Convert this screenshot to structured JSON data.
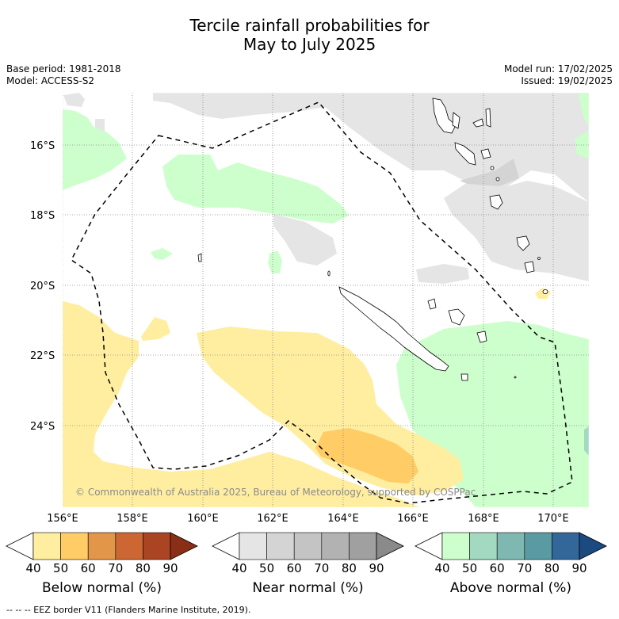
{
  "title_line1": "Tercile rainfall probabilities for",
  "title_line2": "May to July 2025",
  "base_period": "Base period: 1981-2018",
  "model": "Model: ACCESS-S2",
  "model_run": "Model run: 17/02/2025",
  "issued": "Issued: 19/02/2025",
  "credit": "© Commonwealth of Australia 2025, Bureau of Meteorology, supported by COSPPac",
  "eez_note": "--  --  -- EEZ border V11 (Flanders Marine Institute, 2019).",
  "lat_labels": [
    "16°S",
    "18°S",
    "20°S",
    "22°S",
    "24°S"
  ],
  "lon_labels": [
    "156°E",
    "158°E",
    "160°E",
    "162°E",
    "164°E",
    "166°E",
    "168°E",
    "170°E"
  ],
  "colorbars": [
    {
      "title": "Below normal (%)",
      "ticks": [
        "40",
        "50",
        "60",
        "70",
        "80",
        "90"
      ],
      "colors": [
        "#ffffff",
        "#ffeea0",
        "#ffcc66",
        "#e29649",
        "#cc6633",
        "#aa4422",
        "#8b2e16"
      ]
    },
    {
      "title": "Near normal (%)",
      "ticks": [
        "40",
        "50",
        "60",
        "70",
        "80",
        "90"
      ],
      "colors": [
        "#ffffff",
        "#e5e5e5",
        "#d4d4d4",
        "#c4c4c4",
        "#b2b2b2",
        "#a0a0a0",
        "#8a8a8a"
      ]
    },
    {
      "title": "Above normal (%)",
      "ticks": [
        "40",
        "50",
        "60",
        "70",
        "80",
        "90"
      ],
      "colors": [
        "#ffffff",
        "#ccffcc",
        "#a3d9c0",
        "#7fb8b0",
        "#5a9aa2",
        "#336699",
        "#1a4a80"
      ]
    }
  ]
}
